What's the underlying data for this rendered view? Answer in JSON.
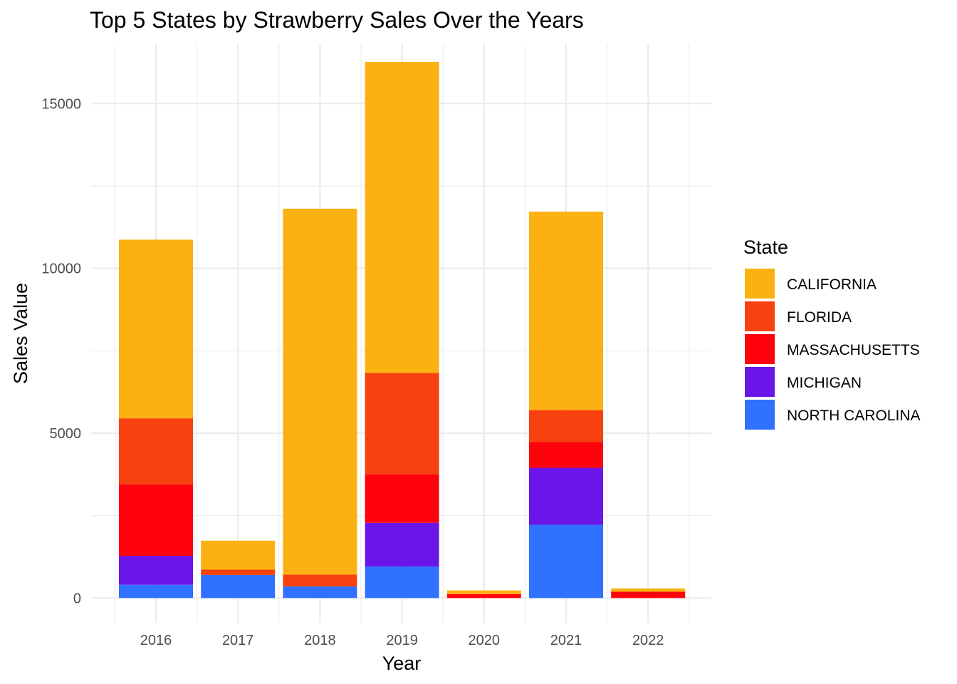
{
  "chart_data": {
    "type": "bar",
    "stacked": true,
    "title": "Top 5 States by Strawberry Sales Over the Years",
    "xlabel": "Year",
    "ylabel": "Sales Value",
    "categories": [
      "2016",
      "2017",
      "2018",
      "2019",
      "2020",
      "2021",
      "2022"
    ],
    "ylim": [
      -750,
      16800
    ],
    "yticks": [
      0,
      5000,
      10000,
      15000
    ],
    "grid": true,
    "legend": {
      "title": "State",
      "position": "right"
    },
    "series": [
      {
        "name": "NORTH CAROLINA",
        "color": "#3171FF",
        "values": [
          400,
          700,
          350,
          950,
          0,
          2220,
          0
        ]
      },
      {
        "name": "MICHIGAN",
        "color": "#6A16E8",
        "values": [
          880,
          0,
          0,
          1330,
          0,
          1730,
          0
        ]
      },
      {
        "name": "MASSACHUSETTS",
        "color": "#FF030D",
        "values": [
          2170,
          0,
          0,
          1480,
          120,
          780,
          190
        ]
      },
      {
        "name": "FLORIDA",
        "color": "#F7410F",
        "values": [
          2000,
          160,
          360,
          3070,
          0,
          970,
          0
        ]
      },
      {
        "name": "CALIFORNIA",
        "color": "#FBB111",
        "values": [
          5420,
          880,
          11100,
          9430,
          110,
          6020,
          100
        ]
      }
    ]
  }
}
